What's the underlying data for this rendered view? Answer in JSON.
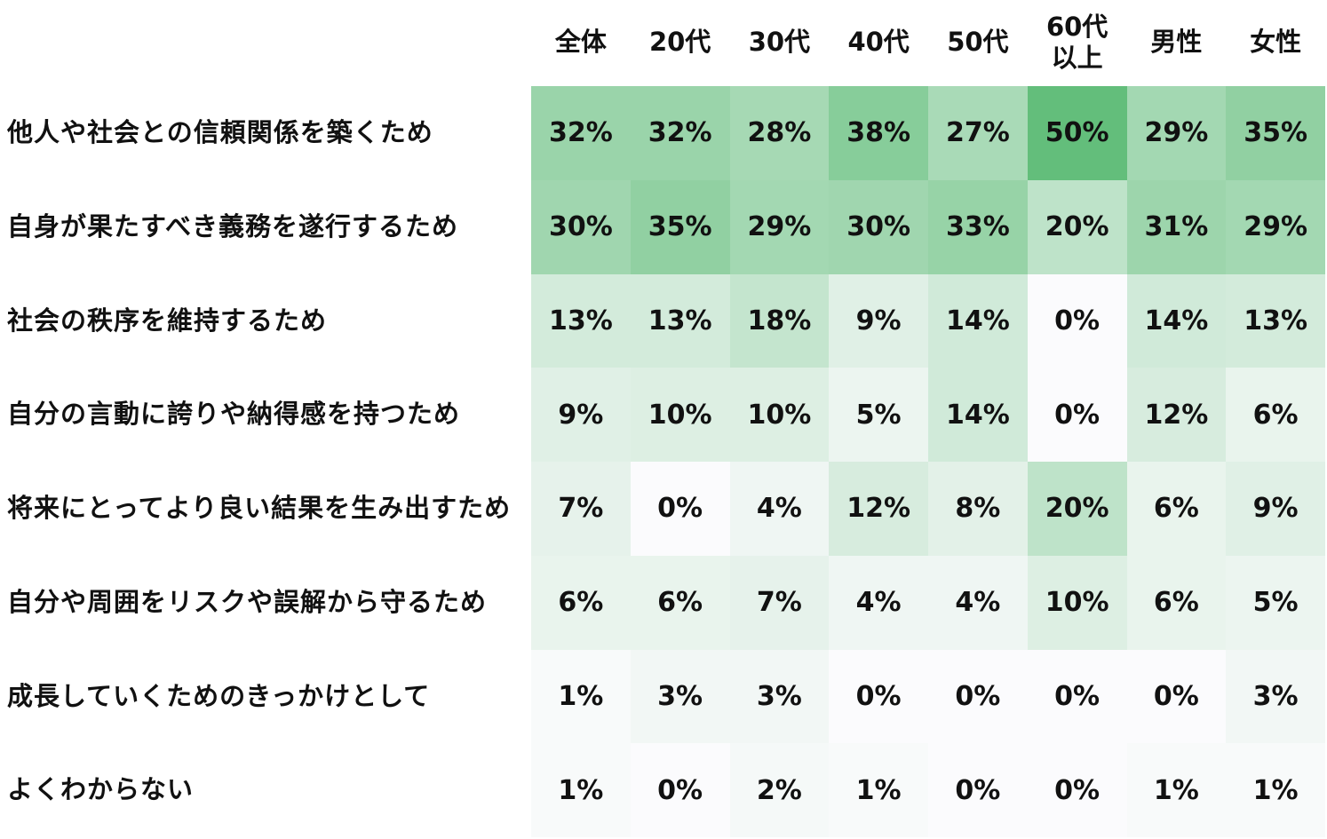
{
  "chart_data": {
    "type": "heatmap",
    "columns": [
      "全体",
      "20代",
      "30代",
      "40代",
      "50代",
      "60代\n以上",
      "男性",
      "女性"
    ],
    "rows": [
      "他人や社会との信頼関係を築くため",
      "自身が果たすべき義務を遂行するため",
      "社会の秩序を維持するため",
      "自分の言動に誇りや納得感を持つため",
      "将来にとってより良い結果を生み出すため",
      "自分や周囲をリスクや誤解から守るため",
      "成長していくためのきっかけとして",
      "よくわからない"
    ],
    "values": [
      [
        32,
        32,
        28,
        38,
        27,
        50,
        29,
        35
      ],
      [
        30,
        35,
        29,
        30,
        33,
        20,
        31,
        29
      ],
      [
        13,
        13,
        18,
        9,
        14,
        0,
        14,
        13
      ],
      [
        9,
        10,
        10,
        5,
        14,
        0,
        12,
        6
      ],
      [
        7,
        0,
        4,
        12,
        8,
        20,
        6,
        9
      ],
      [
        6,
        6,
        7,
        4,
        4,
        10,
        6,
        5
      ],
      [
        1,
        3,
        3,
        0,
        0,
        0,
        0,
        3
      ],
      [
        1,
        0,
        2,
        1,
        0,
        0,
        1,
        1
      ]
    ],
    "value_suffix": "%",
    "color_low": "#fbfbfd",
    "color_high": "#63be7b"
  }
}
